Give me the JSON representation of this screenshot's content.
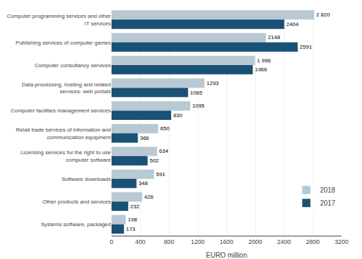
{
  "chart_data": {
    "type": "bar",
    "orientation": "horizontal",
    "categories": [
      "Computer programming services and other\nIT services",
      "Publishing services of computer games",
      "Computer consultancy services",
      "Data processing, hosting and related\nservices: web portals",
      "Computer facilities management services",
      "Retail trade services of information and\ncommunication equipment",
      "Licensing services for the right to use\ncomputer software",
      "Software downloads",
      "Other products and services",
      "Systems software, packaged"
    ],
    "series": [
      {
        "name": "2018",
        "color": "#b8c9d4",
        "values": [
          2820,
          2148,
          1996,
          1293,
          1095,
          650,
          634,
          591,
          426,
          198
        ],
        "value_labels": [
          "2 820",
          "2148",
          "1 996",
          "1293",
          "1095",
          "650",
          "634",
          "591",
          "426",
          "198"
        ]
      },
      {
        "name": "2017",
        "color": "#1a5276",
        "values": [
          2404,
          2591,
          1966,
          1065,
          830,
          366,
          502,
          348,
          232,
          173
        ],
        "value_labels": [
          "2404",
          "2591",
          "1966",
          "1065",
          "830",
          "366",
          "502",
          "348",
          "232",
          "173"
        ]
      }
    ],
    "xlabel": "EURO million",
    "xlim": [
      0,
      3200
    ],
    "xticks": [
      0,
      400,
      800,
      1200,
      1600,
      2000,
      2400,
      2800,
      3200
    ],
    "grid": true,
    "legend": "lower right",
    "data_labels": true
  }
}
